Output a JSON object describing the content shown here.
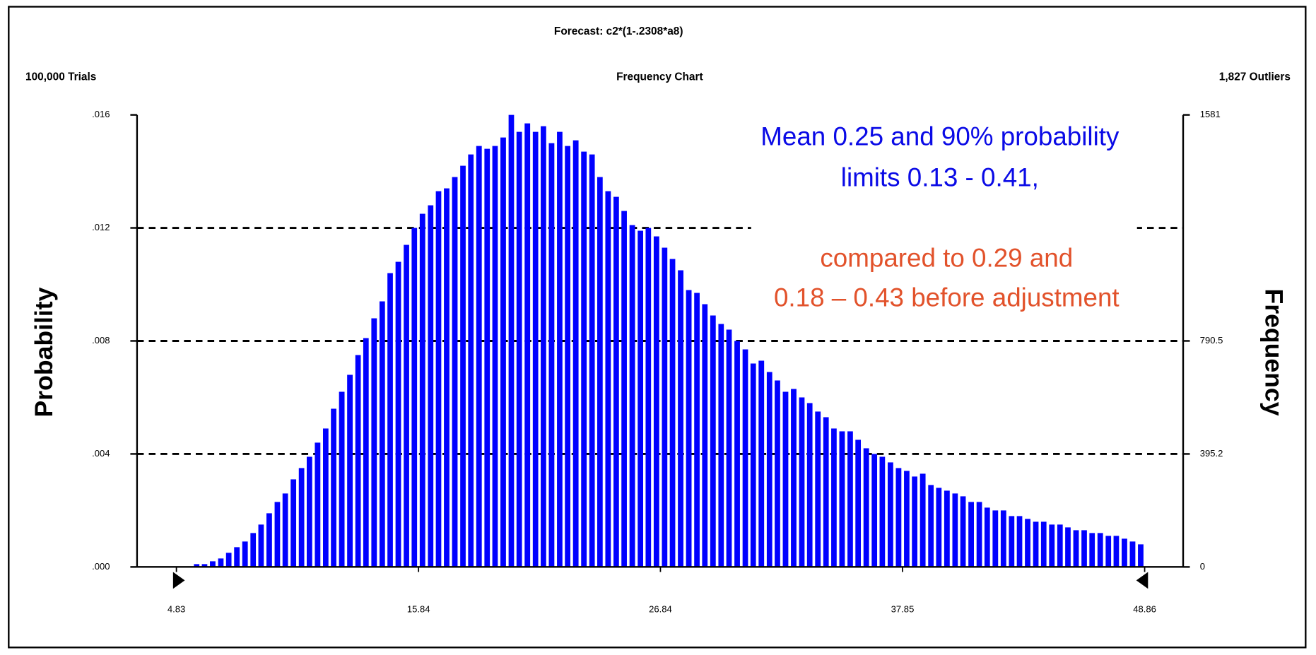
{
  "chart_data": {
    "type": "bar",
    "title": "Forecast: c2*(1-.2308*a8)",
    "subtitle": "Frequency Chart",
    "trials": "100,000 Trials",
    "outliers": "1,827 Outliers",
    "y_label": "Probability",
    "y2_label": "Frequency",
    "annotations": [
      {
        "text": "Mean 0.25 and 90% probability",
        "color": "#0a0ae6"
      },
      {
        "text": "limits 0.13 - 0.41,",
        "color": "#0a0ae6"
      },
      {
        "text": "compared to 0.29 and",
        "color": "#e2522b"
      },
      {
        "text": "0.18 – 0.43 before adjustment",
        "color": "#e2522b"
      }
    ],
    "color": "#0000ff",
    "grid": true,
    "xlim": [
      3.04,
      50.61
    ],
    "xticks": [
      4.83,
      15.84,
      26.84,
      37.85,
      48.86
    ],
    "ylim": [
      0,
      0.016
    ],
    "yticks": [
      {
        "value": 0,
        "label": ".000"
      },
      {
        "value": 0.004,
        "label": ".004"
      },
      {
        "value": 0.008,
        "label": ".008"
      },
      {
        "value": 0.012,
        "label": ".012"
      },
      {
        "value": 0.016,
        "label": ".016"
      }
    ],
    "y2lim": [
      0,
      1581
    ],
    "y2ticks": [
      0,
      395.2,
      790.5,
      1581
    ],
    "x": [
      5.01,
      5.38,
      5.75,
      6.11,
      6.48,
      6.85,
      7.21,
      7.58,
      7.95,
      8.32,
      8.68,
      9.05,
      9.42,
      9.78,
      10.15,
      10.52,
      10.88,
      11.25,
      11.62,
      11.98,
      12.35,
      12.72,
      13.09,
      13.45,
      13.82,
      14.19,
      14.55,
      14.92,
      15.29,
      15.65,
      16.02,
      16.39,
      16.75,
      17.12,
      17.49,
      17.86,
      18.22,
      18.59,
      18.96,
      19.32,
      19.69,
      20.06,
      20.42,
      20.79,
      21.16,
      21.52,
      21.89,
      22.26,
      22.62,
      22.99,
      23.36,
      23.73,
      24.09,
      24.46,
      24.83,
      25.19,
      25.56,
      25.93,
      26.29,
      26.66,
      27.03,
      27.39,
      27.76,
      28.13,
      28.5,
      28.86,
      29.23,
      29.6,
      29.96,
      30.33,
      30.7,
      31.06,
      31.43,
      31.8,
      32.16,
      32.53,
      32.9,
      33.27,
      33.63,
      34.0,
      34.37,
      34.73,
      35.1,
      35.47,
      35.83,
      36.2,
      36.57,
      36.93,
      37.3,
      37.67,
      38.04,
      38.4,
      38.77,
      39.14,
      39.5,
      39.87,
      40.24,
      40.6,
      40.97,
      41.34,
      41.7,
      42.07,
      42.44,
      42.81,
      43.17,
      43.54,
      43.91,
      44.27,
      44.64,
      45.01,
      45.37,
      45.74,
      46.11,
      46.47,
      46.84,
      47.21,
      47.57,
      47.94,
      48.31,
      48.68
    ],
    "values": [
      0,
      0,
      0.0001,
      0.0001,
      0.0002,
      0.0003,
      0.0005,
      0.0007,
      0.0009,
      0.0012,
      0.0015,
      0.0019,
      0.0023,
      0.0026,
      0.0031,
      0.0035,
      0.0039,
      0.0044,
      0.0049,
      0.0056,
      0.0062,
      0.0068,
      0.0075,
      0.0081,
      0.0088,
      0.0094,
      0.0104,
      0.0108,
      0.0114,
      0.012,
      0.0125,
      0.0128,
      0.0133,
      0.0134,
      0.0138,
      0.0142,
      0.0146,
      0.0149,
      0.0148,
      0.0149,
      0.0152,
      0.016,
      0.0154,
      0.0157,
      0.0154,
      0.0156,
      0.015,
      0.0154,
      0.0149,
      0.0151,
      0.0147,
      0.0146,
      0.0138,
      0.0133,
      0.0131,
      0.0126,
      0.0121,
      0.0119,
      0.012,
      0.0117,
      0.0113,
      0.0109,
      0.0105,
      0.0098,
      0.0097,
      0.0093,
      0.0089,
      0.0086,
      0.0084,
      0.008,
      0.0077,
      0.0072,
      0.0073,
      0.0069,
      0.0066,
      0.0062,
      0.0063,
      0.006,
      0.0058,
      0.0055,
      0.0053,
      0.0049,
      0.0048,
      0.0048,
      0.0045,
      0.0042,
      0.004,
      0.0039,
      0.0037,
      0.0035,
      0.0034,
      0.0032,
      0.0033,
      0.0029,
      0.0028,
      0.0027,
      0.0026,
      0.0025,
      0.0023,
      0.0023,
      0.0021,
      0.002,
      0.002,
      0.0018,
      0.0018,
      0.0017,
      0.0016,
      0.0016,
      0.0015,
      0.0015,
      0.0014,
      0.0013,
      0.0013,
      0.0012,
      0.0012,
      0.0011,
      0.0011,
      0.001,
      0.0009,
      0.0008
    ]
  }
}
